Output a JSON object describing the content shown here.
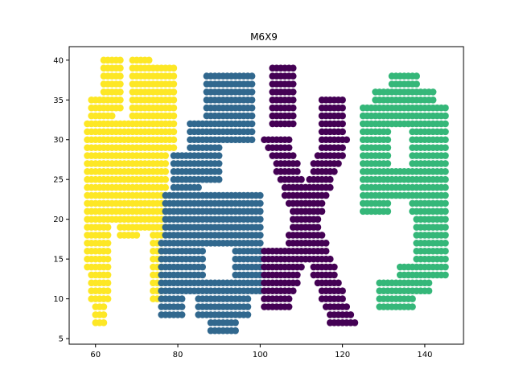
{
  "chart_data": {
    "type": "scatter",
    "title": "M6X9",
    "xlabel": "",
    "ylabel": "",
    "xlim": [
      53.6,
      149.4
    ],
    "ylim": [
      4.3,
      41.7
    ],
    "xticks": [
      60,
      80,
      100,
      120,
      140
    ],
    "yticks": [
      5,
      10,
      15,
      20,
      25,
      30,
      35,
      40
    ],
    "grid": false,
    "series": [
      {
        "color": "#fde725",
        "strokes": [
          {
            "kind": "rect",
            "x0": 58,
            "x1": 63,
            "y0": 14,
            "y1": 32
          },
          {
            "kind": "rect",
            "x0": 59,
            "x1": 63,
            "y0": 10,
            "y1": 14
          },
          {
            "kind": "rect",
            "x0": 60,
            "x1": 62,
            "y0": 7,
            "y1": 10
          },
          {
            "kind": "rect",
            "x0": 59,
            "x1": 64,
            "y0": 32,
            "y1": 35
          },
          {
            "kind": "rect",
            "x0": 62,
            "x1": 66,
            "y0": 34,
            "y1": 40
          },
          {
            "kind": "rect",
            "x0": 63,
            "x1": 71,
            "y0": 20,
            "y1": 32
          },
          {
            "kind": "rect",
            "x0": 66,
            "x1": 70,
            "y0": 18,
            "y1": 20
          },
          {
            "kind": "rect",
            "x0": 69,
            "x1": 73,
            "y0": 28,
            "y1": 40
          },
          {
            "kind": "rect",
            "x0": 73,
            "x1": 79,
            "y0": 29,
            "y1": 39
          },
          {
            "kind": "rect",
            "x0": 71,
            "x1": 77,
            "y0": 19,
            "y1": 29
          },
          {
            "kind": "rect",
            "x0": 74,
            "x1": 76,
            "y0": 10,
            "y1": 19
          }
        ]
      },
      {
        "color": "#31688e",
        "strokes": [
          {
            "kind": "rect",
            "x0": 87,
            "x1": 98,
            "y0": 30,
            "y1": 38
          },
          {
            "kind": "rect",
            "x0": 83,
            "x1": 90,
            "y0": 25,
            "y1": 32
          },
          {
            "kind": "rect",
            "x0": 79,
            "x1": 85,
            "y0": 21,
            "y1": 28
          },
          {
            "kind": "rect",
            "x0": 77,
            "x1": 100,
            "y0": 17,
            "y1": 23
          },
          {
            "kind": "rect",
            "x0": 76,
            "x1": 81,
            "y0": 8,
            "y1": 17
          },
          {
            "kind": "rect",
            "x0": 80,
            "x1": 86,
            "y0": 11,
            "y1": 17
          },
          {
            "kind": "rect",
            "x0": 94,
            "x1": 100,
            "y0": 11,
            "y1": 17
          },
          {
            "kind": "rect",
            "x0": 85,
            "x1": 97,
            "y0": 8,
            "y1": 12
          },
          {
            "kind": "rect",
            "x0": 88,
            "x1": 94,
            "y0": 6,
            "y1": 8
          }
        ]
      },
      {
        "color": "#440154",
        "strokes": [
          {
            "kind": "rect",
            "x0": 103,
            "x1": 108,
            "y0": 32,
            "y1": 39
          },
          {
            "kind": "rect",
            "x0": 115,
            "x1": 120,
            "y0": 28,
            "y1": 35
          },
          {
            "kind": "line",
            "x0": 104,
            "y0": 30,
            "x1": 120,
            "y1": 7,
            "w": 6
          },
          {
            "kind": "line",
            "x0": 118,
            "y0": 30,
            "x1": 104,
            "y1": 9,
            "w": 6
          },
          {
            "kind": "rect",
            "x0": 101,
            "x1": 106,
            "y0": 9,
            "y1": 16
          }
        ]
      },
      {
        "color": "#35b779",
        "strokes": [
          {
            "kind": "rect",
            "x0": 132,
            "x1": 138,
            "y0": 36,
            "y1": 38
          },
          {
            "kind": "rect",
            "x0": 128,
            "x1": 142,
            "y0": 32,
            "y1": 36
          },
          {
            "kind": "rect",
            "x0": 125,
            "x1": 131,
            "y0": 21,
            "y1": 34
          },
          {
            "kind": "rect",
            "x0": 137,
            "x1": 145,
            "y0": 21,
            "y1": 34
          },
          {
            "kind": "rect",
            "x0": 125,
            "x1": 145,
            "y0": 23,
            "y1": 26
          },
          {
            "kind": "rect",
            "x0": 138,
            "x1": 145,
            "y0": 13,
            "y1": 21
          },
          {
            "kind": "rect",
            "x0": 134,
            "x1": 141,
            "y0": 11,
            "y1": 14
          },
          {
            "kind": "rect",
            "x0": 129,
            "x1": 137,
            "y0": 9,
            "y1": 12
          }
        ]
      }
    ]
  }
}
